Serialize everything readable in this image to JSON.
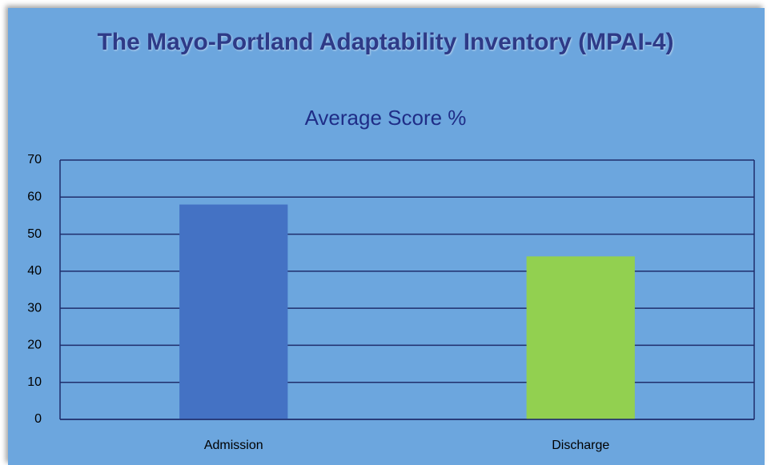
{
  "chart_data": {
    "type": "bar",
    "title": "The Mayo-Portland Adaptability Inventory (MPAI-4)",
    "subtitle": "Average Score %",
    "categories": [
      "Admission",
      "Discharge"
    ],
    "values": [
      58,
      44
    ],
    "colors": [
      "#4472c4",
      "#92d050"
    ],
    "ylim": [
      0,
      70
    ],
    "yticks": [
      0,
      10,
      20,
      30,
      40,
      50,
      60,
      70
    ],
    "grid": true
  }
}
